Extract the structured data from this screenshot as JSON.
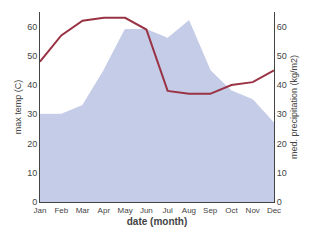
{
  "chart_data": {
    "type": "line",
    "xlabel": "date (month)",
    "ylabel": "max temp (C)",
    "y2label": "med. precipitation (kg/m2)",
    "categories": [
      "Jan",
      "Feb",
      "Mar",
      "Apr",
      "May",
      "Jun",
      "Jul",
      "Aug",
      "Sep",
      "Oct",
      "Nov",
      "Dec"
    ],
    "series": [
      {
        "name": "max temp (C)",
        "type": "area",
        "color": "#c5cce8",
        "values": [
          30,
          30,
          33,
          45,
          59,
          59,
          56,
          62,
          45,
          38,
          35,
          27
        ]
      },
      {
        "name": "med. precipitation (kg/m2)",
        "type": "line",
        "color": "#993344",
        "axis": "y2",
        "values": [
          48,
          57,
          62,
          63,
          63,
          59,
          38,
          37,
          37,
          40,
          41,
          45
        ]
      }
    ],
    "ylim": [
      0,
      65
    ],
    "yticks": [
      0,
      10,
      20,
      30,
      40,
      50,
      60
    ],
    "y2lim": [
      0,
      65
    ],
    "y2ticks": [
      0,
      10,
      20,
      30,
      40,
      50,
      60
    ],
    "grid": false
  }
}
